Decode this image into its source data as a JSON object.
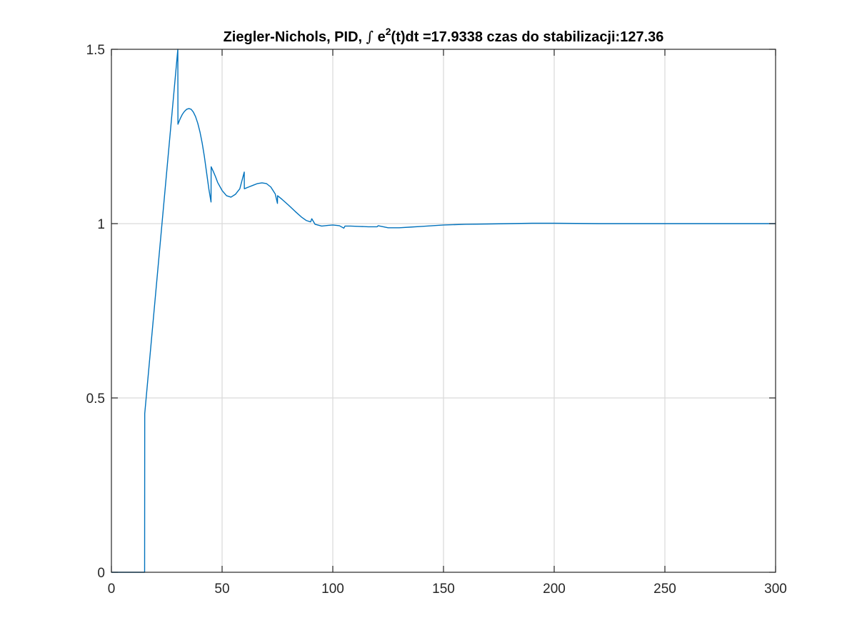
{
  "chart_data": {
    "type": "line",
    "title": {
      "prefix": "Ziegler-Nichols, PID, ",
      "integral_symbol": "∫",
      "expression_base": "e",
      "expression_power": "2",
      "expression_suffix": "(t)dt =17.9338 czas do stabilizacji:127.36"
    },
    "xlabel": "",
    "ylabel": "",
    "xlim": [
      0,
      300
    ],
    "ylim": [
      0,
      1.5
    ],
    "grid": true,
    "x_ticks": [
      0,
      50,
      100,
      150,
      200,
      250,
      300
    ],
    "x_tick_labels": [
      "0",
      "50",
      "100",
      "150",
      "200",
      "250",
      "300"
    ],
    "y_ticks": [
      0,
      0.5,
      1,
      1.5
    ],
    "y_tick_labels": [
      "0",
      "0.5",
      "1",
      "1.5"
    ],
    "line_color": "#0072BD",
    "series": [
      {
        "x": [
          0,
          15,
          15.05,
          30,
          30.05,
          31,
          32,
          33,
          34,
          35,
          36,
          37,
          38,
          39,
          40,
          41,
          42,
          43,
          44,
          45,
          45.05,
          46,
          47,
          48,
          50,
          52,
          54,
          56,
          58,
          60,
          60.05,
          62,
          64,
          66,
          68,
          70,
          72,
          74,
          75,
          75.05,
          77,
          80,
          83,
          86,
          88,
          90,
          90.5,
          92,
          95,
          98,
          100,
          103,
          105,
          105.5,
          108,
          112,
          116,
          120,
          120.5,
          125,
          130,
          135,
          140,
          150,
          160,
          170,
          180,
          190,
          200,
          220,
          250,
          300
        ],
        "y": [
          0,
          0,
          0.455,
          1.5,
          1.285,
          1.3,
          1.313,
          1.322,
          1.328,
          1.33,
          1.328,
          1.32,
          1.307,
          1.288,
          1.263,
          1.231,
          1.192,
          1.146,
          1.1,
          1.062,
          1.163,
          1.15,
          1.135,
          1.118,
          1.095,
          1.08,
          1.076,
          1.084,
          1.1,
          1.148,
          1.1,
          1.105,
          1.11,
          1.115,
          1.117,
          1.115,
          1.105,
          1.085,
          1.058,
          1.08,
          1.07,
          1.053,
          1.035,
          1.018,
          1.009,
          1.005,
          1.014,
          0.998,
          0.993,
          0.995,
          0.996,
          0.994,
          0.987,
          0.993,
          0.993,
          0.992,
          0.991,
          0.991,
          0.994,
          0.988,
          0.988,
          0.99,
          0.992,
          0.996,
          0.998,
          0.999,
          1.0,
          1.001,
          1.001,
          1.0,
          1.0,
          1.0
        ]
      }
    ]
  }
}
